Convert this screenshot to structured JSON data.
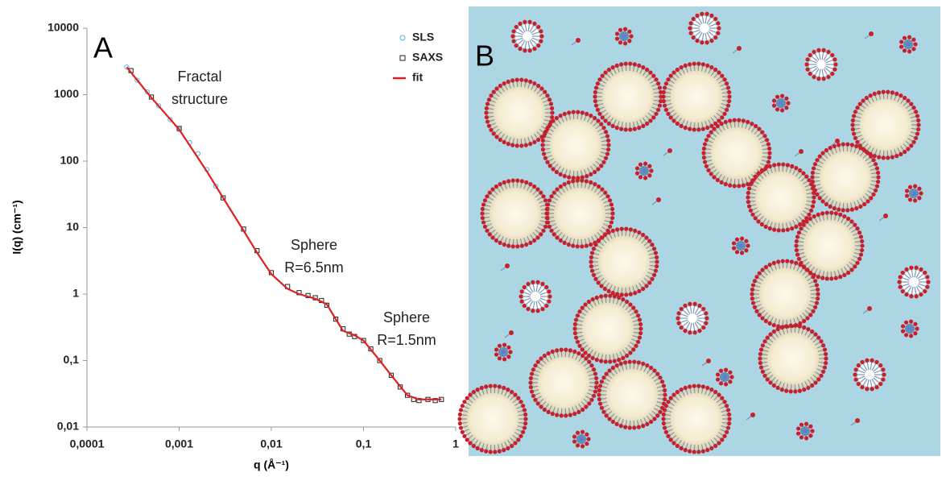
{
  "chart_data": {
    "type": "line",
    "panel_label": "A",
    "xlabel": "q (Å⁻¹)",
    "ylabel": "I(q) (cm⁻¹)",
    "log_x": true,
    "log_y": true,
    "grid": false,
    "legend": "upper right",
    "xlim": [
      0.0001,
      1
    ],
    "xticks": [
      {
        "value": 0.0001,
        "label": "0,0001"
      },
      {
        "value": 0.001,
        "label": "0,001"
      },
      {
        "value": 0.01,
        "label": "0,01"
      },
      {
        "value": 0.1,
        "label": "0,1"
      },
      1
    ],
    "ylim": [
      0.01,
      10000
    ],
    "yticks": [
      {
        "value": 0.01,
        "label": "0,01"
      },
      {
        "value": 0.1,
        "label": "0,1"
      },
      1,
      10,
      100,
      1000,
      10000
    ],
    "series": [
      {
        "name": "SLS",
        "color": "#4fb3e0",
        "marker": "circle",
        "x": [
          0.00027,
          0.00035,
          0.00045,
          0.0006,
          0.0008,
          0.001,
          0.0013,
          0.0016,
          0.002,
          0.0025
        ],
        "values": [
          2600,
          1650,
          1100,
          680,
          420,
          300,
          190,
          130,
          75,
          42
        ]
      },
      {
        "name": "SAXS",
        "color": "#222222",
        "marker": "square",
        "x": [
          0.0003,
          0.0005,
          0.001,
          0.003,
          0.005,
          0.007,
          0.01,
          0.015,
          0.02,
          0.025,
          0.03,
          0.035,
          0.04,
          0.05,
          0.06,
          0.07,
          0.08,
          0.1,
          0.12,
          0.15,
          0.2,
          0.25,
          0.3,
          0.35,
          0.4,
          0.5,
          0.6,
          0.7
        ],
        "values": [
          2300,
          920,
          310,
          28,
          9.5,
          4.5,
          2.1,
          1.3,
          1.05,
          0.95,
          0.88,
          0.8,
          0.68,
          0.42,
          0.3,
          0.25,
          0.23,
          0.2,
          0.15,
          0.1,
          0.06,
          0.04,
          0.03,
          0.026,
          0.025,
          0.026,
          0.025,
          0.026
        ]
      },
      {
        "name": "fit",
        "color": "#e02020",
        "marker": "none",
        "x": [
          0.00027,
          0.0005,
          0.001,
          0.002,
          0.003,
          0.005,
          0.007,
          0.01,
          0.015,
          0.02,
          0.03,
          0.04,
          0.05,
          0.06,
          0.08,
          0.1,
          0.15,
          0.2,
          0.3,
          0.4,
          0.5,
          0.7
        ],
        "values": [
          2600,
          900,
          300,
          70,
          28,
          9,
          4.2,
          2,
          1.2,
          1.0,
          0.85,
          0.7,
          0.42,
          0.28,
          0.24,
          0.2,
          0.1,
          0.06,
          0.03,
          0.026,
          0.026,
          0.026
        ]
      }
    ],
    "annotations": [
      [
        "Fractal",
        "structure"
      ],
      [
        "Sphere",
        "R=6.5nm"
      ],
      [
        "Sphere",
        "R=1.5nm"
      ]
    ]
  },
  "illustration": {
    "label": "B"
  }
}
